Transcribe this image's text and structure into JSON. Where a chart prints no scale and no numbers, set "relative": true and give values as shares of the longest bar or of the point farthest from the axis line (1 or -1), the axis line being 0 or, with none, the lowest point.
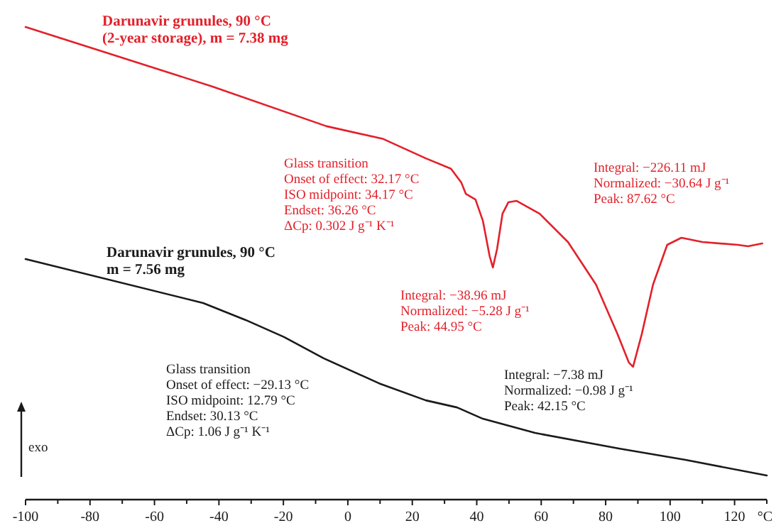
{
  "chart_data": {
    "type": "line",
    "relative": true,
    "xlabel": "°C",
    "xlim": [
      -100,
      130
    ],
    "xticks": [
      -100,
      {
        "value": -90,
        "label": null
      },
      -80,
      {
        "value": -70,
        "label": null
      },
      -60,
      {
        "value": -50,
        "label": null
      },
      -40,
      {
        "value": -30,
        "label": null
      },
      -20,
      {
        "value": -10,
        "label": null
      },
      0,
      {
        "value": 10,
        "label": null
      },
      20,
      {
        "value": 30,
        "label": null
      },
      40,
      {
        "value": 50,
        "label": null
      },
      60,
      {
        "value": 70,
        "label": null
      },
      80,
      {
        "value": 90,
        "label": null
      },
      100,
      {
        "value": 110,
        "label": null
      },
      120,
      {
        "value": 130,
        "label": null
      }
    ],
    "grid": false,
    "marker": "none",
    "line_style": "solid",
    "series": [
      {
        "name": "Darunavir grunules, 90 °C",
        "color": "#e3202a",
        "x": [
          -100,
          -77,
          -42,
          -6.6,
          11,
          24.2,
          32,
          35.2,
          36.6,
          39.6,
          41.9,
          44,
          45,
          46.3,
          48,
          49.8,
          52.4,
          59.5,
          68.3,
          77,
          83.7,
          87.2,
          88.5,
          91.2,
          94.7,
          99.1,
          103.5,
          110,
          121,
          124.2,
          128.6
        ],
        "values": [
          1.0,
          0.95,
          0.874,
          0.79,
          0.763,
          0.722,
          0.7,
          0.671,
          0.647,
          0.635,
          0.59,
          0.515,
          0.491,
          0.53,
          0.605,
          0.629,
          0.632,
          0.605,
          0.545,
          0.455,
          0.35,
          0.29,
          0.281,
          0.35,
          0.455,
          0.539,
          0.554,
          0.545,
          0.539,
          0.536,
          0.542
        ]
      },
      {
        "name": "Darunavir grunules, 90 °C",
        "color": "#1a1a1a",
        "x": [
          -100,
          -44.9,
          -31.7,
          -19.8,
          -7.5,
          9.7,
          24.2,
          33.9,
          41.9,
          58.1,
          84.1,
          104.8,
          130
        ],
        "values": [
          0.509,
          0.416,
          0.38,
          0.344,
          0.299,
          0.246,
          0.21,
          0.195,
          0.171,
          0.141,
          0.108,
          0.084,
          0.051
        ]
      }
    ],
    "annotations": [
      "(2-year storage), m = 7.38 mg",
      "m = 7.56 mg",
      "Glass transition\nOnset of effect: 32.17 °C\nISO midpoint: 34.17 °C\nEndset: 36.26 °C\nΔCp: 0.302 J g⁻¹ K⁻¹",
      "Integral: −226.11 mJ\nNormalized: −30.64 J g⁻¹\nPeak: 87.62 °C",
      "Integral: −38.96 mJ\nNormalized: −5.28 J g⁻¹\nPeak: 44.95 °C",
      "Glass transition\nOnset of effect: −29.13 °C\nISO midpoint: 12.79 °C\nEndset: 30.13 °C\nΔCp: 1.06 J g⁻¹ K⁻¹",
      "Integral: −7.38 mJ\nNormalized: −0.98 J g⁻¹\nPeak: 42.15 °C",
      "exo"
    ]
  }
}
